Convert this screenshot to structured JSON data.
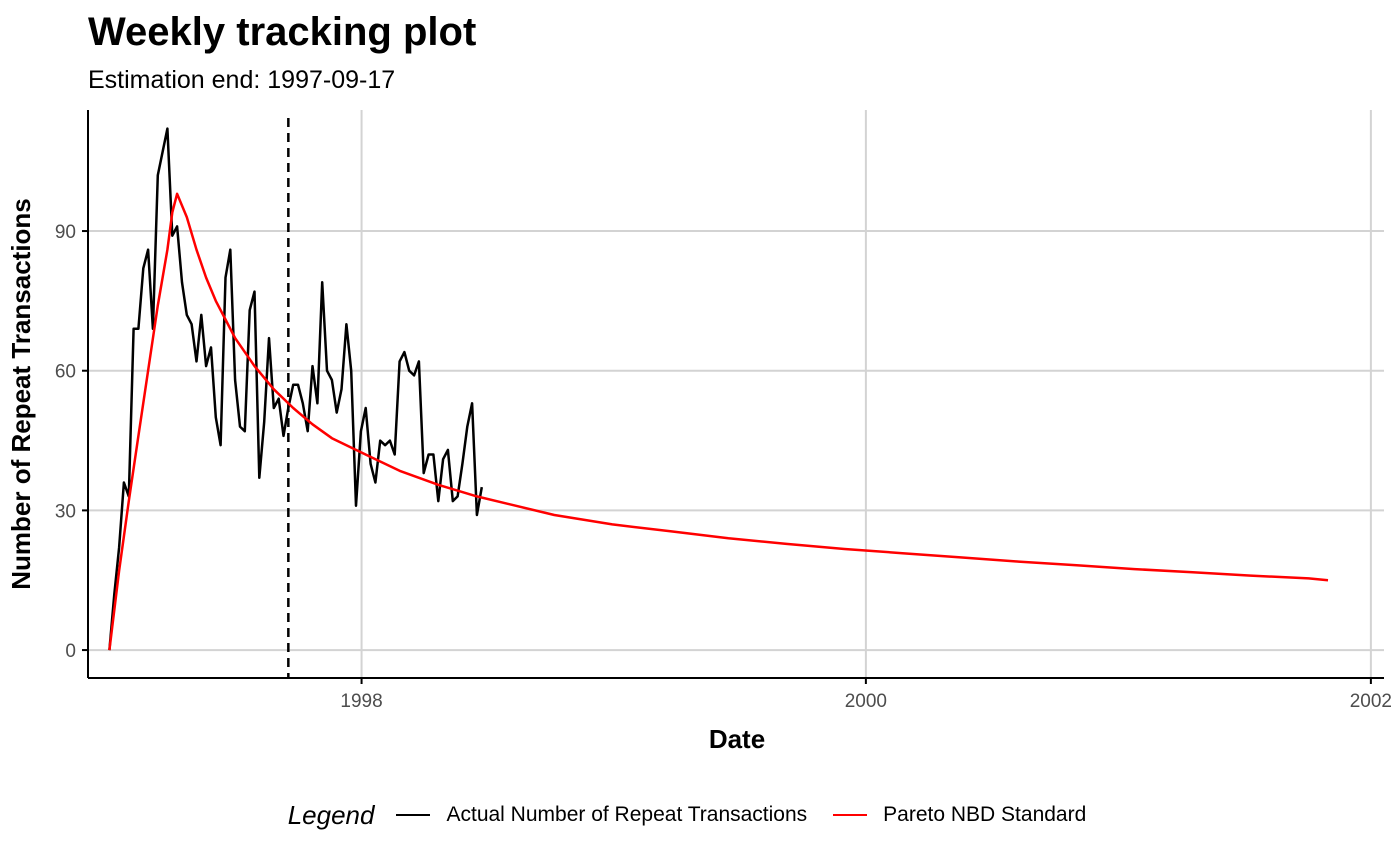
{
  "chart_data": {
    "type": "line",
    "title": "Weekly tracking plot",
    "subtitle": "Estimation end: 1997-09-17",
    "xlabel": "Date",
    "ylabel": "Number of Repeat Transactions",
    "xlim": [
      "1996-12-01",
      "2002-01-20"
    ],
    "ylim": [
      -6,
      116
    ],
    "x_ticks": [
      {
        "value": "1998-01-01",
        "label": "1998"
      },
      {
        "value": "2000-01-01",
        "label": "2000"
      },
      {
        "value": "2002-01-01",
        "label": "2002"
      }
    ],
    "y_ticks": [
      0,
      30,
      60,
      90
    ],
    "grid": true,
    "estimation_end": "1997-09-17",
    "legend": {
      "title": "Legend",
      "position": "bottom"
    },
    "series": [
      {
        "name": "Actual Number of Repeat Transactions",
        "color": "#000000",
        "start": "1997-01-01",
        "step_days": 7,
        "values": [
          0,
          12,
          22,
          36,
          33,
          69,
          69,
          82,
          86,
          69,
          102,
          107,
          112,
          89,
          91,
          79,
          72,
          70,
          62,
          72,
          61,
          65,
          50,
          44,
          80,
          86,
          58,
          48,
          47,
          73,
          77,
          37,
          49,
          67,
          52,
          54,
          46,
          52,
          57,
          57,
          53,
          47,
          61,
          53,
          79,
          60,
          58,
          51,
          56,
          70,
          60,
          31,
          47,
          52,
          40,
          36,
          45,
          44,
          45,
          42,
          62,
          64,
          60,
          59,
          62,
          38,
          42,
          42,
          32,
          41,
          43,
          32,
          33,
          40,
          48,
          53,
          29,
          35
        ]
      },
      {
        "name": "Pareto NBD Standard",
        "color": "#ff0000",
        "x": [
          "1997-01-01",
          "1997-01-15",
          "1997-01-29",
          "1997-02-12",
          "1997-02-26",
          "1997-03-12",
          "1997-03-26",
          "1997-04-02",
          "1997-04-09",
          "1997-04-23",
          "1997-05-07",
          "1997-05-21",
          "1997-06-04",
          "1997-06-18",
          "1997-07-02",
          "1997-07-30",
          "1997-08-27",
          "1997-09-24",
          "1997-10-22",
          "1997-11-19",
          "1997-12-31",
          "1998-02-25",
          "1998-04-22",
          "1998-06-17",
          "1998-08-12",
          "1998-10-07",
          "1998-12-30",
          "1999-03-24",
          "1999-06-16",
          "1999-09-08",
          "1999-12-01",
          "2000-02-23",
          "2000-05-17",
          "2000-08-09",
          "2000-11-01",
          "2001-01-24",
          "2001-04-18",
          "2001-07-11",
          "2001-10-03",
          "2001-10-31"
        ],
        "values": [
          0,
          17,
          32,
          46,
          60,
          74,
          86,
          94,
          98,
          93,
          86,
          80,
          75,
          71,
          67,
          61,
          56,
          52,
          48.5,
          45.5,
          42.5,
          38.5,
          35.5,
          33,
          31,
          29,
          27,
          25.5,
          24,
          22.8,
          21.7,
          20.8,
          19.9,
          19,
          18.2,
          17.4,
          16.7,
          16,
          15.4,
          15
        ]
      }
    ]
  }
}
